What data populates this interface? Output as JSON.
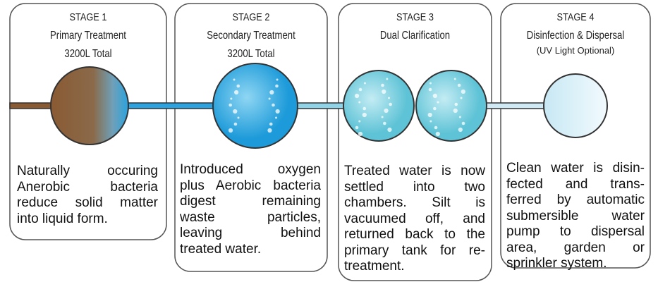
{
  "stages": [
    {
      "label": "STAGE 1",
      "title": "Primary Treatment",
      "capacity": "3200L Total",
      "description": [
        "Naturally occuring",
        "Anerobic bacteria",
        "reduce solid matter",
        "into liquid form."
      ]
    },
    {
      "label": "STAGE 2",
      "title": "Secondary Treatment",
      "capacity": "3200L Total",
      "description": [
        "Introduced oxygen",
        "plus Aerobic bacteria",
        "digest remaining",
        "waste particles,",
        "leaving behind",
        "treated water."
      ]
    },
    {
      "label": "STAGE 3",
      "title": "Dual Clarification",
      "description": [
        "Treated water is now",
        "settled into two",
        "chambers. Silt is",
        "vacuumed off, and",
        "returned back to the",
        "primary tank for re-",
        "treatment."
      ]
    },
    {
      "label": "STAGE 4",
      "title": "Disinfection & Dispersal",
      "note": "(UV Light Optional)",
      "description": [
        "Clean water is disin-",
        "fected and trans-",
        "ferred by automatic",
        "submersible water",
        "pump to dispersal",
        "area, garden or",
        "sprinkler system."
      ]
    }
  ]
}
